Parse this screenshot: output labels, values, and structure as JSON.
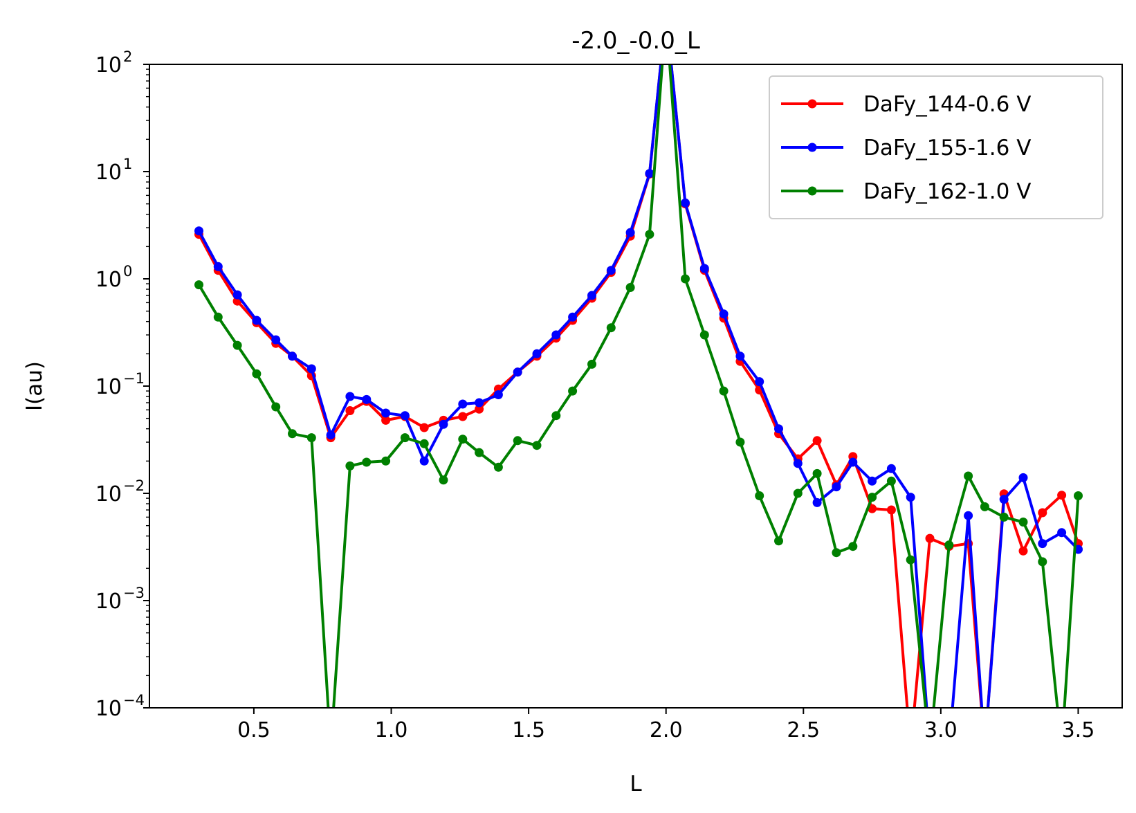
{
  "chart_data": {
    "type": "line",
    "title": "-2.0_-0.0_L",
    "xlabel": "L",
    "ylabel": "I(au)",
    "xlim": [
      0.12,
      3.66
    ],
    "ylim": [
      0.0001,
      100
    ],
    "yscale": "log",
    "grid": false,
    "legend_position": "top-right",
    "xticks": [
      {
        "value": 0.5,
        "label": "0.5"
      },
      {
        "value": 1.0,
        "label": "1.0"
      },
      {
        "value": 1.5,
        "label": "1.5"
      },
      {
        "value": 2.0,
        "label": "2.0"
      },
      {
        "value": 2.5,
        "label": "2.5"
      },
      {
        "value": 3.0,
        "label": "3.0"
      },
      {
        "value": 3.5,
        "label": "3.5"
      }
    ],
    "yticks": [
      {
        "value": 0.0001,
        "base": "10",
        "exp": "−4"
      },
      {
        "value": 0.001,
        "base": "10",
        "exp": "−3"
      },
      {
        "value": 0.01,
        "base": "10",
        "exp": "−2"
      },
      {
        "value": 0.1,
        "base": "10",
        "exp": "−1"
      },
      {
        "value": 1,
        "base": "10",
        "exp": "0"
      },
      {
        "value": 10,
        "base": "10",
        "exp": "1"
      },
      {
        "value": 100,
        "base": "10",
        "exp": "2"
      }
    ],
    "series": [
      {
        "name": "DaFy_144-0.6 V",
        "color": "#ff0000",
        "points": [
          [
            0.3,
            2.6
          ],
          [
            0.37,
            1.2
          ],
          [
            0.44,
            0.62
          ],
          [
            0.51,
            0.39
          ],
          [
            0.58,
            0.25
          ],
          [
            0.64,
            0.19
          ],
          [
            0.71,
            0.125
          ],
          [
            0.78,
            0.033
          ],
          [
            0.85,
            0.059
          ],
          [
            0.91,
            0.072
          ],
          [
            0.98,
            0.048
          ],
          [
            1.05,
            0.052
          ],
          [
            1.12,
            0.041
          ],
          [
            1.19,
            0.048
          ],
          [
            1.26,
            0.052
          ],
          [
            1.32,
            0.061
          ],
          [
            1.39,
            0.094
          ],
          [
            1.46,
            0.135
          ],
          [
            1.53,
            0.19
          ],
          [
            1.6,
            0.28
          ],
          [
            1.66,
            0.41
          ],
          [
            1.73,
            0.66
          ],
          [
            1.8,
            1.15
          ],
          [
            1.87,
            2.5
          ],
          [
            1.94,
            9.5
          ],
          [
            2.0,
            300
          ],
          [
            2.07,
            5.0
          ],
          [
            2.14,
            1.2
          ],
          [
            2.21,
            0.43
          ],
          [
            2.27,
            0.17
          ],
          [
            2.34,
            0.092
          ],
          [
            2.41,
            0.036
          ],
          [
            2.48,
            0.021
          ],
          [
            2.55,
            0.031
          ],
          [
            2.62,
            0.012
          ],
          [
            2.68,
            0.022
          ],
          [
            2.75,
            0.0072
          ],
          [
            2.82,
            0.007
          ],
          [
            2.89,
            null
          ],
          [
            2.96,
            0.0038
          ],
          [
            3.03,
            0.0032
          ],
          [
            3.1,
            0.0034
          ],
          [
            3.16,
            null
          ],
          [
            3.23,
            0.0099
          ],
          [
            3.3,
            0.0029
          ],
          [
            3.37,
            0.0066
          ],
          [
            3.44,
            0.0096
          ],
          [
            3.5,
            0.0034
          ]
        ]
      },
      {
        "name": "DaFy_155-1.6 V",
        "color": "#0000ff",
        "points": [
          [
            0.3,
            2.8
          ],
          [
            0.37,
            1.3
          ],
          [
            0.44,
            0.71
          ],
          [
            0.51,
            0.41
          ],
          [
            0.58,
            0.27
          ],
          [
            0.64,
            0.19
          ],
          [
            0.71,
            0.145
          ],
          [
            0.78,
            0.035
          ],
          [
            0.85,
            0.08
          ],
          [
            0.91,
            0.075
          ],
          [
            0.98,
            0.056
          ],
          [
            1.05,
            0.053
          ],
          [
            1.12,
            0.02
          ],
          [
            1.19,
            0.044
          ],
          [
            1.26,
            0.068
          ],
          [
            1.32,
            0.07
          ],
          [
            1.39,
            0.083
          ],
          [
            1.46,
            0.135
          ],
          [
            1.53,
            0.2
          ],
          [
            1.6,
            0.3
          ],
          [
            1.66,
            0.44
          ],
          [
            1.73,
            0.7
          ],
          [
            1.8,
            1.2
          ],
          [
            1.87,
            2.7
          ],
          [
            1.94,
            9.6
          ],
          [
            2.0,
            300
          ],
          [
            2.07,
            5.1
          ],
          [
            2.14,
            1.25
          ],
          [
            2.21,
            0.47
          ],
          [
            2.27,
            0.19
          ],
          [
            2.34,
            0.11
          ],
          [
            2.41,
            0.04
          ],
          [
            2.48,
            0.019
          ],
          [
            2.55,
            0.0082
          ],
          [
            2.62,
            0.0115
          ],
          [
            2.68,
            0.0195
          ],
          [
            2.75,
            0.013
          ],
          [
            2.82,
            0.017
          ],
          [
            2.89,
            0.0092
          ],
          [
            2.96,
            null
          ],
          [
            3.03,
            null
          ],
          [
            3.1,
            0.0062
          ],
          [
            3.16,
            null
          ],
          [
            3.23,
            0.0088
          ],
          [
            3.3,
            0.014
          ],
          [
            3.37,
            0.0034
          ],
          [
            3.44,
            0.0043
          ],
          [
            3.5,
            0.003
          ]
        ]
      },
      {
        "name": "DaFy_162-1.0 V",
        "color": "#008000",
        "points": [
          [
            0.3,
            0.88
          ],
          [
            0.37,
            0.44
          ],
          [
            0.44,
            0.24
          ],
          [
            0.51,
            0.13
          ],
          [
            0.58,
            0.064
          ],
          [
            0.64,
            0.036
          ],
          [
            0.71,
            0.033
          ],
          [
            0.78,
            null
          ],
          [
            0.85,
            0.018
          ],
          [
            0.91,
            0.0195
          ],
          [
            0.98,
            0.02
          ],
          [
            1.05,
            0.033
          ],
          [
            1.12,
            0.029
          ],
          [
            1.19,
            0.0133
          ],
          [
            1.26,
            0.032
          ],
          [
            1.32,
            0.024
          ],
          [
            1.39,
            0.0175
          ],
          [
            1.46,
            0.031
          ],
          [
            1.53,
            0.028
          ],
          [
            1.6,
            0.053
          ],
          [
            1.66,
            0.09
          ],
          [
            1.73,
            0.16
          ],
          [
            1.8,
            0.35
          ],
          [
            1.87,
            0.83
          ],
          [
            1.94,
            2.6
          ],
          [
            2.0,
            300
          ],
          [
            2.07,
            1.0
          ],
          [
            2.14,
            0.3
          ],
          [
            2.21,
            0.09
          ],
          [
            2.27,
            0.03
          ],
          [
            2.34,
            0.0095
          ],
          [
            2.41,
            0.0036
          ],
          [
            2.48,
            0.01
          ],
          [
            2.55,
            0.0153
          ],
          [
            2.62,
            0.0028
          ],
          [
            2.68,
            0.0032
          ],
          [
            2.75,
            0.0092
          ],
          [
            2.82,
            0.013
          ],
          [
            2.89,
            0.0024
          ],
          [
            2.96,
            null
          ],
          [
            3.03,
            0.0033
          ],
          [
            3.1,
            0.0145
          ],
          [
            3.16,
            0.0075
          ],
          [
            3.23,
            0.006
          ],
          [
            3.3,
            0.0054
          ],
          [
            3.37,
            0.0023
          ],
          [
            3.44,
            null
          ],
          [
            3.5,
            0.0095
          ]
        ]
      }
    ]
  }
}
